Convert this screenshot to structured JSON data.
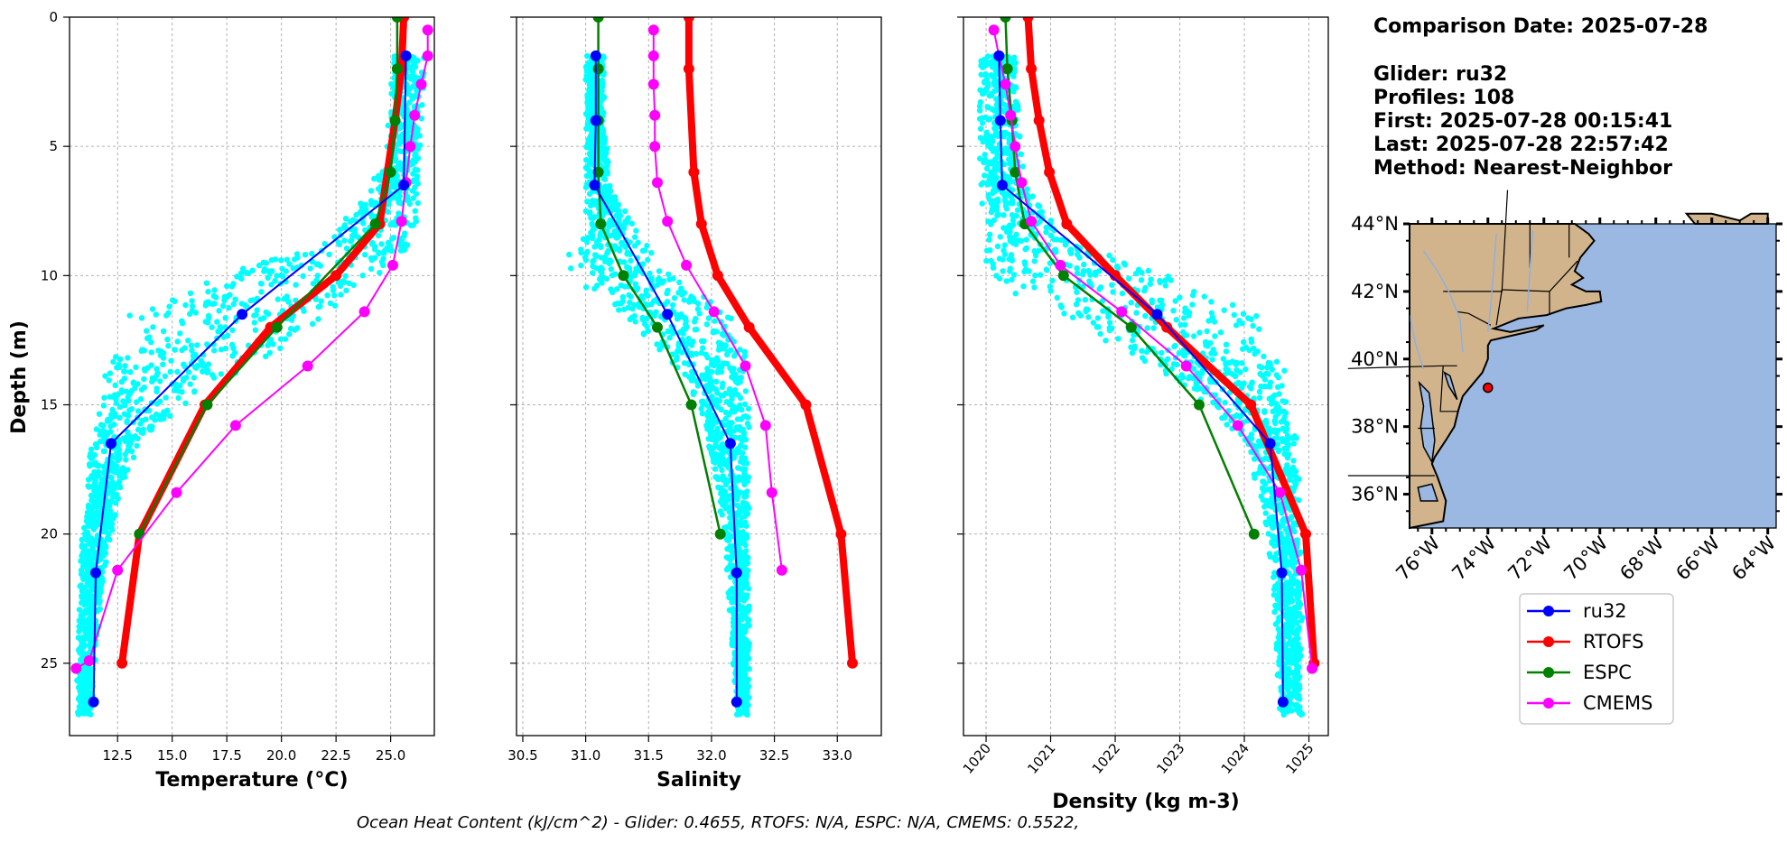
{
  "info": {
    "title": "Comparison Date: 2025-07-28",
    "lines": [
      "Glider: ru32",
      "Profiles: 108",
      "First: 2025-07-28 00:15:41",
      "Last: 2025-07-28 22:57:42",
      "Method: Nearest-Neighbor"
    ]
  },
  "footer": "Ocean Heat Content (kJ/cm^2) - Glider: 0.4655,  RTOFS: N/A,  ESPC: N/A,  CMEMS: 0.5522,",
  "colors": {
    "ru32": "#0000ff",
    "RTOFS": "#ff0000",
    "ESPC": "#008000",
    "CMEMS": "#ff00ff",
    "glider_points": "#00ffff",
    "land": "#d2b48c",
    "ocean": "#9ab8e2"
  },
  "legend": [
    "ru32",
    "RTOFS",
    "ESPC",
    "CMEMS"
  ],
  "chart_data": [
    {
      "type": "line",
      "xlabel": "Temperature (°C)",
      "ylabel": "Depth (m)",
      "xlim": [
        10.3,
        27.0
      ],
      "ylim": [
        27.8,
        0
      ],
      "xticks": [
        12.5,
        15.0,
        17.5,
        20.0,
        22.5,
        25.0
      ],
      "xtick_labels": [
        "12.5",
        "15.0",
        "17.5",
        "20.0",
        "22.5",
        "25.0"
      ],
      "yticks": [
        0,
        5,
        10,
        15,
        20,
        25
      ],
      "grid": true,
      "glider_cloud": [
        {
          "depth": 1.5,
          "min": 25.0,
          "max": 26.6
        },
        {
          "depth": 3.0,
          "min": 25.0,
          "max": 26.5
        },
        {
          "depth": 5.0,
          "min": 24.8,
          "max": 26.4
        },
        {
          "depth": 7.0,
          "min": 23.8,
          "max": 26.3
        },
        {
          "depth": 8.5,
          "min": 22.0,
          "max": 26.1
        },
        {
          "depth": 9.5,
          "min": 18.5,
          "max": 25.5
        },
        {
          "depth": 10.5,
          "min": 16.0,
          "max": 24.0
        },
        {
          "depth": 11.5,
          "min": 13.0,
          "max": 22.5
        },
        {
          "depth": 12.5,
          "min": 12.5,
          "max": 21.0
        },
        {
          "depth": 13.5,
          "min": 12.0,
          "max": 18.5
        },
        {
          "depth": 15.0,
          "min": 11.7,
          "max": 15.5
        },
        {
          "depth": 16.5,
          "min": 11.3,
          "max": 13.5
        },
        {
          "depth": 18.5,
          "min": 11.0,
          "max": 12.6
        },
        {
          "depth": 21.0,
          "min": 10.8,
          "max": 12.0
        },
        {
          "depth": 24.0,
          "min": 10.7,
          "max": 11.6
        },
        {
          "depth": 27.0,
          "min": 10.6,
          "max": 11.3
        }
      ],
      "series": [
        {
          "name": "ru32",
          "x": [
            25.7,
            25.6,
            18.2,
            12.2,
            11.5,
            11.4
          ],
          "y": [
            1.5,
            6.5,
            11.5,
            16.5,
            21.5,
            26.5
          ]
        },
        {
          "name": "RTOFS",
          "x": [
            25.6,
            25.5,
            25.2,
            24.5,
            22.5,
            19.5,
            16.5,
            13.5,
            12.7
          ],
          "y": [
            0,
            2,
            4,
            8,
            10,
            12,
            15,
            20,
            25
          ]
        },
        {
          "name": "ESPC",
          "x": [
            25.3,
            25.3,
            25.2,
            25.0,
            24.3,
            19.8,
            16.6,
            13.5
          ],
          "y": [
            0,
            2,
            4,
            6,
            8,
            12,
            15,
            20
          ]
        },
        {
          "name": "CMEMS",
          "x": [
            26.7,
            26.7,
            26.4,
            26.1,
            25.9,
            25.7,
            25.5,
            25.1,
            23.8,
            21.2,
            17.9,
            15.2,
            12.5,
            11.2,
            10.6
          ],
          "y": [
            0.5,
            1.5,
            2.6,
            3.8,
            5.0,
            6.4,
            7.9,
            9.6,
            11.4,
            13.5,
            15.8,
            18.4,
            21.4,
            24.9,
            25.2
          ]
        }
      ]
    },
    {
      "type": "line",
      "xlabel": "Salinity",
      "xlim": [
        30.45,
        33.35
      ],
      "ylim": [
        27.8,
        0
      ],
      "xticks": [
        30.5,
        31.0,
        31.5,
        32.0,
        32.5,
        33.0
      ],
      "xtick_labels": [
        "30.5",
        "31.0",
        "31.5",
        "32.0",
        "32.5",
        "33.0"
      ],
      "yticks": [
        0,
        5,
        10,
        15,
        20,
        25
      ],
      "grid": true,
      "glider_cloud": [
        {
          "depth": 1.5,
          "min": 31.0,
          "max": 31.15
        },
        {
          "depth": 4.0,
          "min": 31.0,
          "max": 31.15
        },
        {
          "depth": 6.5,
          "min": 31.0,
          "max": 31.2
        },
        {
          "depth": 8.5,
          "min": 31.0,
          "max": 31.45
        },
        {
          "depth": 9.5,
          "min": 30.75,
          "max": 31.6
        },
        {
          "depth": 10.5,
          "min": 31.0,
          "max": 31.85
        },
        {
          "depth": 11.5,
          "min": 31.3,
          "max": 32.15
        },
        {
          "depth": 12.5,
          "min": 31.5,
          "max": 32.25
        },
        {
          "depth": 13.5,
          "min": 31.7,
          "max": 32.3
        },
        {
          "depth": 15.0,
          "min": 31.9,
          "max": 32.3
        },
        {
          "depth": 17.0,
          "min": 32.0,
          "max": 32.3
        },
        {
          "depth": 20.0,
          "min": 32.1,
          "max": 32.3
        },
        {
          "depth": 23.5,
          "min": 32.15,
          "max": 32.3
        },
        {
          "depth": 27.0,
          "min": 32.2,
          "max": 32.3
        }
      ],
      "series": [
        {
          "name": "ru32",
          "x": [
            31.08,
            31.08,
            31.07,
            31.65,
            32.15,
            32.2,
            32.2
          ],
          "y": [
            1.5,
            4.0,
            6.5,
            11.5,
            16.5,
            21.5,
            26.5
          ]
        },
        {
          "name": "RTOFS",
          "x": [
            31.82,
            31.82,
            31.86,
            31.92,
            32.05,
            32.3,
            32.75,
            33.03,
            33.12
          ],
          "y": [
            0,
            2,
            6,
            8,
            10,
            12,
            15,
            20,
            25
          ]
        },
        {
          "name": "ESPC",
          "x": [
            31.1,
            31.1,
            31.1,
            31.1,
            31.12,
            31.3,
            31.57,
            31.84,
            32.07
          ],
          "y": [
            0,
            2,
            4,
            6,
            8,
            10,
            12,
            15,
            20
          ]
        },
        {
          "name": "CMEMS",
          "x": [
            31.54,
            31.54,
            31.54,
            31.55,
            31.55,
            31.57,
            31.65,
            31.8,
            32.02,
            32.27,
            32.43,
            32.48,
            32.56
          ],
          "y": [
            0.5,
            1.5,
            2.6,
            3.8,
            5.0,
            6.4,
            7.9,
            9.6,
            11.4,
            13.5,
            15.8,
            18.4,
            21.4
          ]
        }
      ]
    },
    {
      "type": "line",
      "xlabel": "Density (kg m-3)",
      "xlim": [
        1019.65,
        1025.3
      ],
      "ylim": [
        27.8,
        0
      ],
      "xticks": [
        1020,
        1021,
        1022,
        1023,
        1024,
        1025
      ],
      "xtick_labels": [
        "1020",
        "1021",
        "1022",
        "1023",
        "1024",
        "1025"
      ],
      "yticks": [
        0,
        5,
        10,
        15,
        20,
        25
      ],
      "grid": true,
      "glider_cloud": [
        {
          "depth": 1.5,
          "min": 1019.9,
          "max": 1020.5
        },
        {
          "depth": 4.0,
          "min": 1019.9,
          "max": 1020.5
        },
        {
          "depth": 6.5,
          "min": 1019.9,
          "max": 1020.6
        },
        {
          "depth": 8.5,
          "min": 1019.95,
          "max": 1021.2
        },
        {
          "depth": 9.5,
          "min": 1020.0,
          "max": 1022.3
        },
        {
          "depth": 10.5,
          "min": 1020.3,
          "max": 1023.4
        },
        {
          "depth": 11.5,
          "min": 1021.1,
          "max": 1024.2
        },
        {
          "depth": 12.5,
          "min": 1021.7,
          "max": 1024.5
        },
        {
          "depth": 13.5,
          "min": 1022.6,
          "max": 1024.7
        },
        {
          "depth": 15.0,
          "min": 1023.4,
          "max": 1024.8
        },
        {
          "depth": 16.5,
          "min": 1024.0,
          "max": 1024.85
        },
        {
          "depth": 19.0,
          "min": 1024.3,
          "max": 1024.85
        },
        {
          "depth": 22.0,
          "min": 1024.45,
          "max": 1024.9
        },
        {
          "depth": 25.0,
          "min": 1024.5,
          "max": 1024.9
        },
        {
          "depth": 27.0,
          "min": 1024.55,
          "max": 1024.9
        }
      ],
      "series": [
        {
          "name": "ru32",
          "x": [
            1020.2,
            1020.22,
            1020.25,
            1022.65,
            1024.4,
            1024.58,
            1024.6
          ],
          "y": [
            1.5,
            4.0,
            6.5,
            11.5,
            16.5,
            21.5,
            26.5
          ]
        },
        {
          "name": "RTOFS",
          "x": [
            1020.65,
            1020.7,
            1020.82,
            1020.98,
            1021.25,
            1022.0,
            1022.8,
            1024.1,
            1024.95,
            1025.08
          ],
          "y": [
            0,
            2,
            4,
            6,
            8,
            10,
            12,
            15,
            20,
            25
          ]
        },
        {
          "name": "ESPC",
          "x": [
            1020.3,
            1020.33,
            1020.4,
            1020.45,
            1020.6,
            1021.2,
            1022.25,
            1023.3,
            1024.15
          ],
          "y": [
            0,
            2,
            4,
            6,
            8,
            10,
            12,
            15,
            20
          ]
        },
        {
          "name": "CMEMS",
          "x": [
            1020.12,
            1020.2,
            1020.3,
            1020.38,
            1020.45,
            1020.55,
            1020.7,
            1021.15,
            1022.1,
            1023.1,
            1023.9,
            1024.55,
            1024.88,
            1025.05
          ],
          "y": [
            0.5,
            1.5,
            2.6,
            3.8,
            5.0,
            6.4,
            7.9,
            9.6,
            11.4,
            13.5,
            15.8,
            18.4,
            21.4,
            25.2
          ]
        }
      ]
    }
  ],
  "map": {
    "lat_ticks": [
      "44°N",
      "42°N",
      "40°N",
      "38°N",
      "36°N"
    ],
    "lon_ticks": [
      "76°W",
      "74°W",
      "72°W",
      "70°W",
      "68°W",
      "66°W",
      "64°W"
    ],
    "lon_range": [
      -76.8,
      -63.7
    ],
    "lat_range": [
      35,
      44
    ],
    "marker": {
      "lon": -74.0,
      "lat": 39.15
    }
  }
}
